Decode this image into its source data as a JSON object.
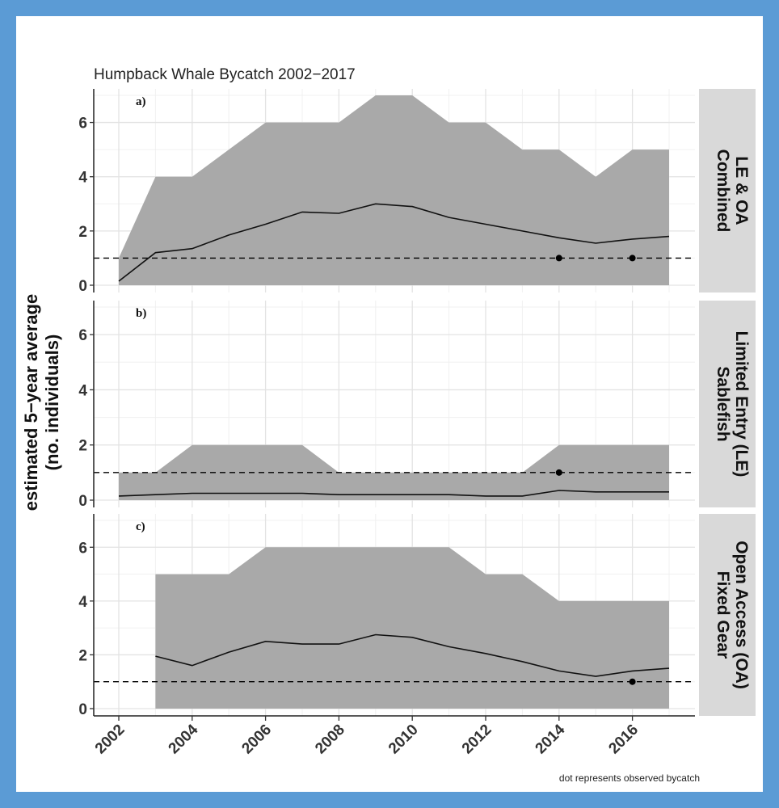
{
  "chart_data": {
    "type": "area",
    "title": "Humpback Whale Bycatch 2002−2017",
    "ylabel": "estimated 5−year average",
    "ylabel_line2": "(no. individuals)",
    "xlabel": "",
    "note": "dot represents observed bycatch",
    "xlim": [
      2002,
      2017
    ],
    "ylim": [
      0,
      7
    ],
    "x_ticks": [
      2002,
      2004,
      2006,
      2008,
      2010,
      2012,
      2014,
      2016
    ],
    "y_ticks": [
      0,
      2,
      4,
      6
    ],
    "reference_line": 1,
    "grid": true,
    "panels": [
      {
        "label": "a)",
        "strip_line1": "LE & OA",
        "strip_line2": "Combined",
        "x": [
          2002,
          2003,
          2004,
          2005,
          2006,
          2007,
          2008,
          2009,
          2010,
          2011,
          2012,
          2013,
          2014,
          2015,
          2016,
          2017
        ],
        "mean": [
          0.15,
          1.2,
          1.35,
          1.85,
          2.25,
          2.7,
          2.65,
          3.0,
          2.9,
          2.5,
          2.25,
          2.0,
          1.75,
          1.55,
          1.7,
          1.8
        ],
        "lower": [
          0,
          0,
          0,
          0,
          0,
          0,
          0,
          0,
          0,
          0,
          0,
          0,
          0,
          0,
          0,
          0
        ],
        "upper": [
          1,
          4,
          4,
          5,
          6,
          6,
          6,
          7,
          7,
          6,
          6,
          5,
          5,
          4,
          5,
          5
        ],
        "observed_x": [
          2014,
          2016
        ],
        "observed_y": [
          1,
          1
        ]
      },
      {
        "label": "b)",
        "strip_line1": "Limited Entry (LE)",
        "strip_line2": "Sablefish",
        "x": [
          2002,
          2003,
          2004,
          2005,
          2006,
          2007,
          2008,
          2009,
          2010,
          2011,
          2012,
          2013,
          2014,
          2015,
          2016,
          2017
        ],
        "mean": [
          0.15,
          0.2,
          0.25,
          0.25,
          0.25,
          0.25,
          0.2,
          0.2,
          0.2,
          0.2,
          0.15,
          0.15,
          0.35,
          0.3,
          0.3,
          0.3
        ],
        "lower": [
          0,
          0,
          0,
          0,
          0,
          0,
          0,
          0,
          0,
          0,
          0,
          0,
          0,
          0,
          0,
          0
        ],
        "upper": [
          1,
          1,
          2,
          2,
          2,
          2,
          1,
          1,
          1,
          1,
          1,
          1,
          2,
          2,
          2,
          2
        ],
        "observed_x": [
          2014
        ],
        "observed_y": [
          1
        ]
      },
      {
        "label": "c)",
        "strip_line1": "Open Access (OA)",
        "strip_line2": "Fixed Gear",
        "x": [
          2003,
          2004,
          2005,
          2006,
          2007,
          2008,
          2009,
          2010,
          2011,
          2012,
          2013,
          2014,
          2015,
          2016,
          2017
        ],
        "mean": [
          1.95,
          1.6,
          2.1,
          2.5,
          2.4,
          2.4,
          2.75,
          2.65,
          2.3,
          2.05,
          1.75,
          1.4,
          1.2,
          1.4,
          1.5
        ],
        "lower": [
          0,
          0,
          0,
          0,
          0,
          0,
          0,
          0,
          0,
          0,
          0,
          0,
          0,
          0,
          0
        ],
        "upper": [
          5,
          5,
          5,
          6,
          6,
          6,
          6,
          6,
          6,
          5,
          5,
          4,
          4,
          4,
          4
        ],
        "observed_x": [
          2016
        ],
        "observed_y": [
          1
        ]
      }
    ]
  }
}
